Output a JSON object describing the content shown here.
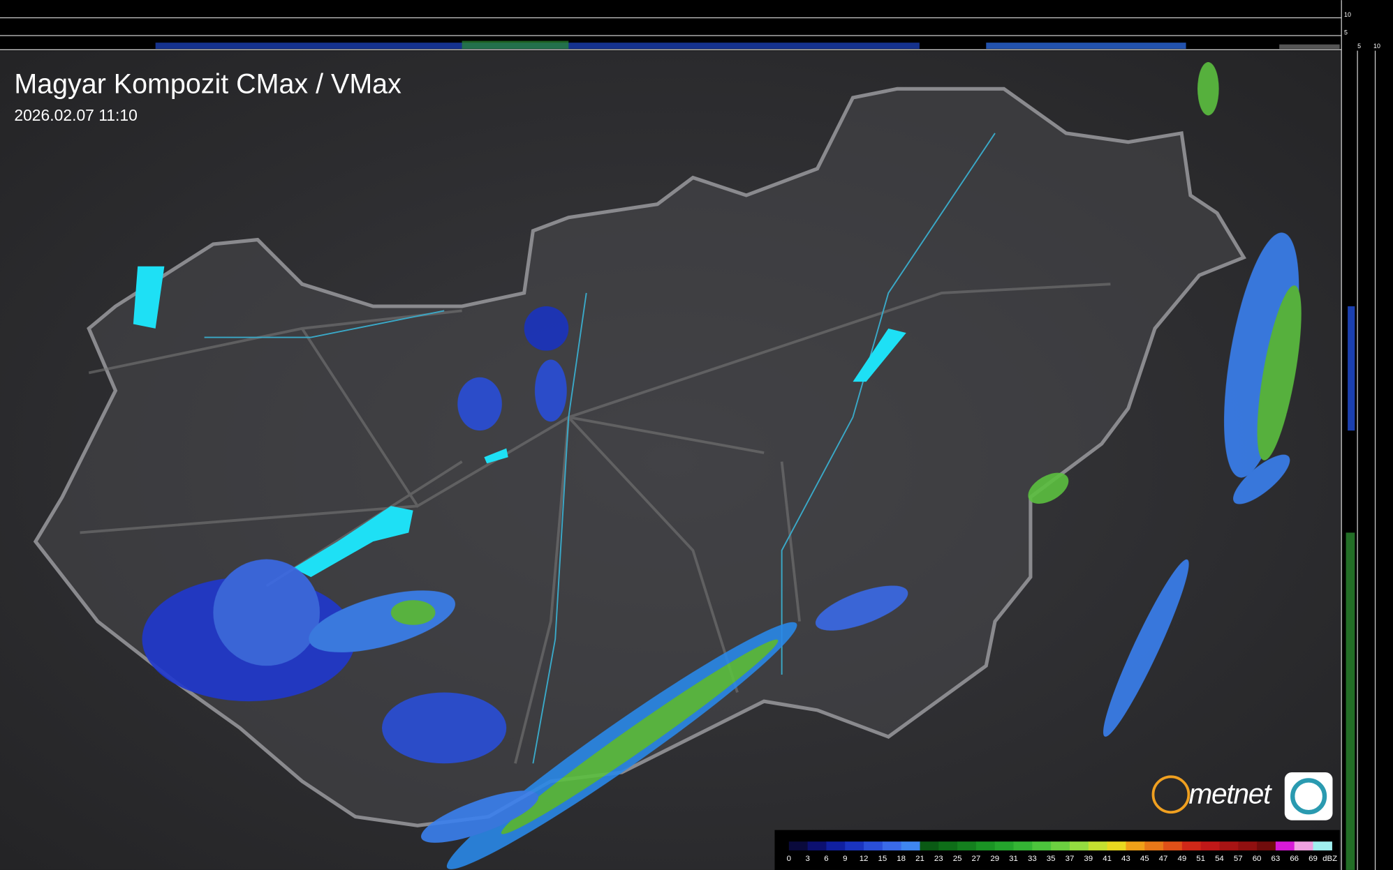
{
  "header": {
    "title": "Magyar Kompozit CMax / VMax",
    "timestamp": "2026.02.07 11:10"
  },
  "brand": "metnet",
  "side_axis": {
    "top_labels": [
      "10",
      "5"
    ],
    "bottom_labels": [
      "5",
      "10"
    ]
  },
  "legend": {
    "unit": "dBZ",
    "ticks": [
      0,
      3,
      6,
      9,
      12,
      15,
      18,
      21,
      23,
      25,
      27,
      29,
      31,
      33,
      35,
      37,
      39,
      41,
      43,
      45,
      47,
      49,
      51,
      54,
      57,
      60,
      63,
      66,
      69
    ],
    "colors": [
      "#0a0a3c",
      "#0c1070",
      "#1020a0",
      "#1a34c0",
      "#2a4fd8",
      "#3a6ae8",
      "#3f86f0",
      "#0a5a14",
      "#0e6e18",
      "#14801e",
      "#1a9424",
      "#24a42c",
      "#34b434",
      "#4cc43c",
      "#6cd040",
      "#94dc40",
      "#c4e030",
      "#e8d820",
      "#f0a018",
      "#e87818",
      "#e05018",
      "#d02818",
      "#c01818",
      "#a81414",
      "#901010",
      "#700c0c",
      "#d81ad8",
      "#f0a0e0",
      "#a0f0f0"
    ]
  }
}
